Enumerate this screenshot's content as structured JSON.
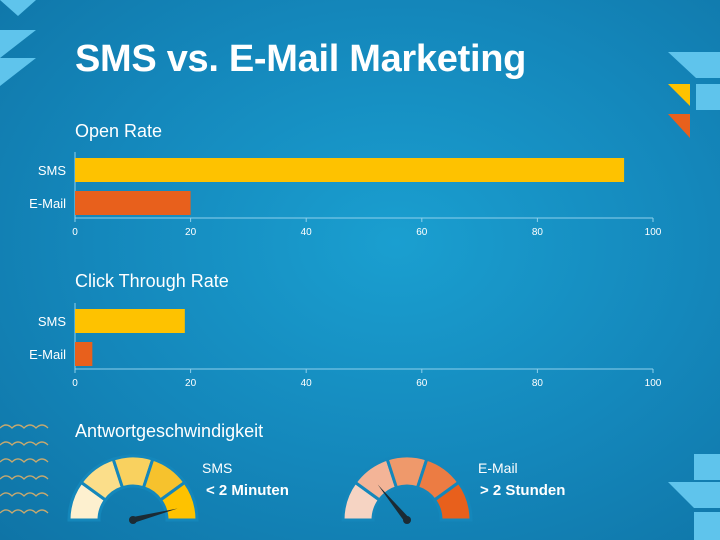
{
  "title": "SMS vs. E-Mail Marketing",
  "colors": {
    "sms": "#fec200",
    "email": "#e8601c",
    "axis": "#8ed0ec",
    "tri_light": "#5fc4ec",
    "tri_yellow": "#fec200",
    "tri_orange": "#e8601c",
    "wave": "#c9a96e",
    "sms_gauge": [
      "#fdf0cf",
      "#fbde8a",
      "#f9d15f",
      "#f6c22d",
      "#fec200"
    ],
    "email_gauge": [
      "#f6d4c3",
      "#f3b497",
      "#ef996b",
      "#ec7c43",
      "#e8601c"
    ],
    "needle": "#1b2b34"
  },
  "chart_data": [
    {
      "type": "bar",
      "orientation": "horizontal",
      "title": "Open Rate",
      "categories": [
        "SMS",
        "E-Mail"
      ],
      "values": [
        95,
        20
      ],
      "xlim": [
        0,
        100
      ],
      "xticks": [
        0,
        20,
        40,
        60,
        80,
        100
      ],
      "grid": false,
      "legend": "none"
    },
    {
      "type": "bar",
      "orientation": "horizontal",
      "title": "Click Through Rate",
      "categories": [
        "SMS",
        "E-Mail"
      ],
      "values": [
        19,
        3
      ],
      "xlim": [
        0,
        100
      ],
      "xticks": [
        0,
        20,
        40,
        60,
        80,
        100
      ],
      "grid": false,
      "legend": "none"
    }
  ],
  "response": {
    "title": "Antwortgeschwindigkeit",
    "sms": {
      "label": "SMS",
      "value": "< 2 Minuten",
      "needle": 0.92
    },
    "email": {
      "label": "E-Mail",
      "value": "> 2 Stunden",
      "needle": 0.28
    }
  }
}
